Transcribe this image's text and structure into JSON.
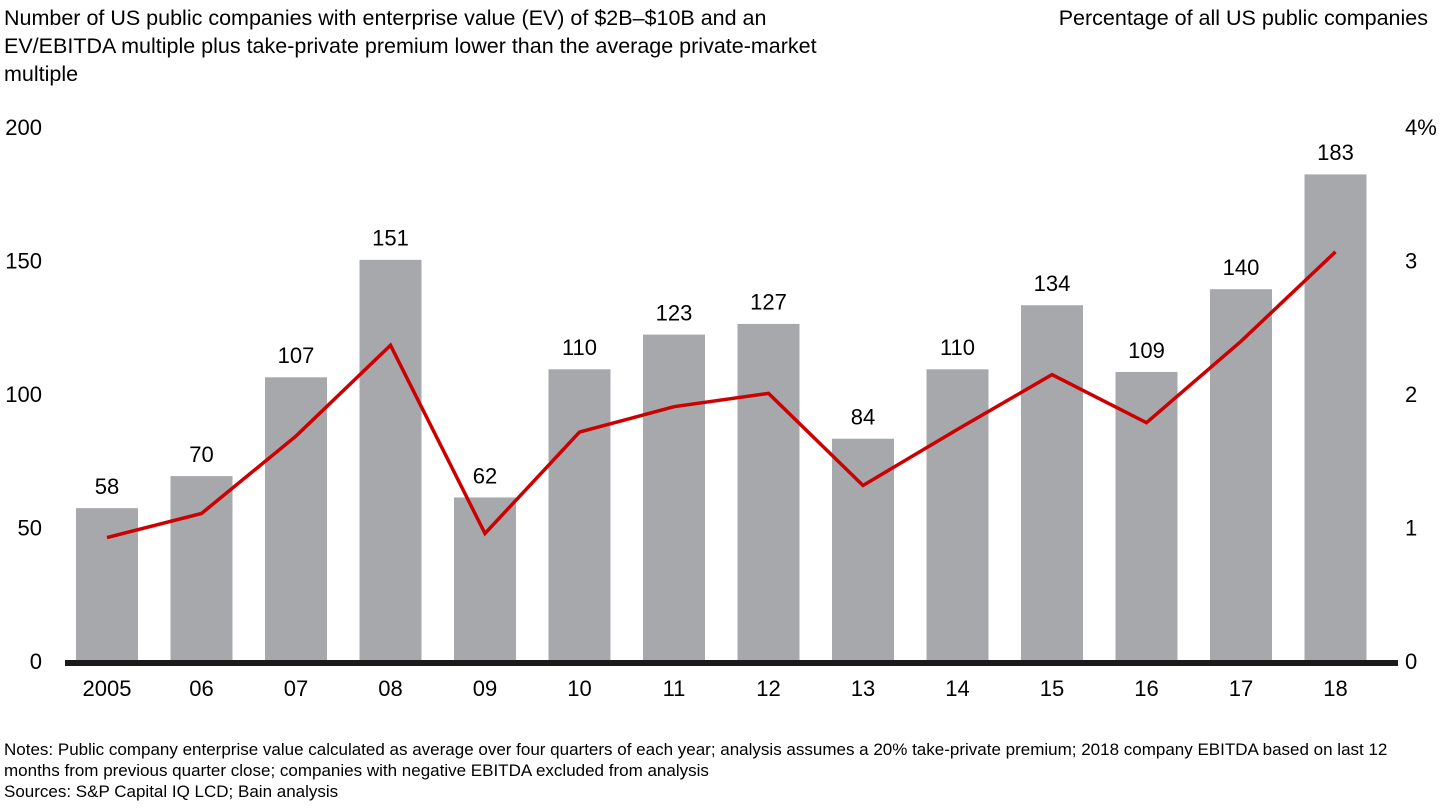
{
  "chart_data": {
    "type": "bar-line",
    "title": "Number of US public companies with enterprise value (EV) of $2B–$10B and an EV/EBITDA multiple plus take-private premium lower than the average private-market multiple",
    "y2label": "Percentage of all US public companies",
    "categories": [
      "2005",
      "06",
      "07",
      "08",
      "09",
      "10",
      "11",
      "12",
      "13",
      "14",
      "15",
      "16",
      "17",
      "18"
    ],
    "series": [
      {
        "type": "bar",
        "color": "#a7a8ab",
        "values": [
          58,
          70,
          107,
          151,
          62,
          110,
          123,
          127,
          84,
          110,
          134,
          109,
          140,
          183
        ]
      },
      {
        "type": "line",
        "axis": "y2",
        "color": "#cc0000",
        "values": [
          0.94,
          1.12,
          1.7,
          2.38,
          0.97,
          1.73,
          1.92,
          2.02,
          1.33,
          1.75,
          2.16,
          1.8,
          2.41,
          3.08
        ]
      }
    ],
    "ylim": [
      0,
      200
    ],
    "yticks": [
      0,
      50,
      100,
      150,
      200
    ],
    "y2lim": [
      0,
      4
    ],
    "y2ticks": [
      0,
      1,
      2,
      3,
      {
        "value": 4,
        "label": "4%"
      }
    ],
    "notes": "Notes: Public company enterprise value calculated as average over four quarters of each year; analysis assumes a 20% take-private premium; 2018 company EBITDA based on last 12 months from previous quarter close; companies with negative EBITDA excluded from analysis",
    "sources": "Sources: S&P Capital IQ LCD; Bain analysis"
  }
}
